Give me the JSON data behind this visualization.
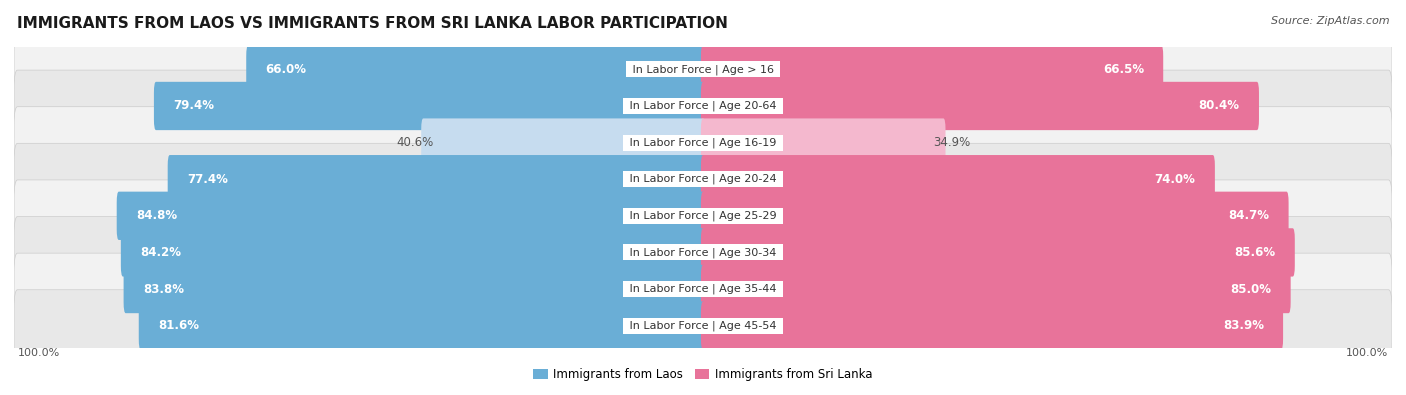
{
  "title": "IMMIGRANTS FROM LAOS VS IMMIGRANTS FROM SRI LANKA LABOR PARTICIPATION",
  "source": "Source: ZipAtlas.com",
  "categories": [
    "In Labor Force | Age > 16",
    "In Labor Force | Age 20-64",
    "In Labor Force | Age 16-19",
    "In Labor Force | Age 20-24",
    "In Labor Force | Age 25-29",
    "In Labor Force | Age 30-34",
    "In Labor Force | Age 35-44",
    "In Labor Force | Age 45-54"
  ],
  "laos_values": [
    66.0,
    79.4,
    40.6,
    77.4,
    84.8,
    84.2,
    83.8,
    81.6
  ],
  "srilanka_values": [
    66.5,
    80.4,
    34.9,
    74.0,
    84.7,
    85.6,
    85.0,
    83.9
  ],
  "laos_color": "#6aaed6",
  "laos_color_light": "#c6dcef",
  "srilanka_color": "#e8739a",
  "srilanka_color_light": "#f4b8ce",
  "row_bg_even": "#f2f2f2",
  "row_bg_odd": "#e8e8e8",
  "label_color_white": "#ffffff",
  "label_color_dark": "#555555",
  "title_fontsize": 11,
  "source_fontsize": 8,
  "bar_label_fontsize": 8.5,
  "category_label_fontsize": 8,
  "legend_fontsize": 8.5,
  "max_value": 100.0,
  "figure_bg": "#ffffff",
  "center_label_bg": "#ffffff",
  "border_color": "#cccccc"
}
